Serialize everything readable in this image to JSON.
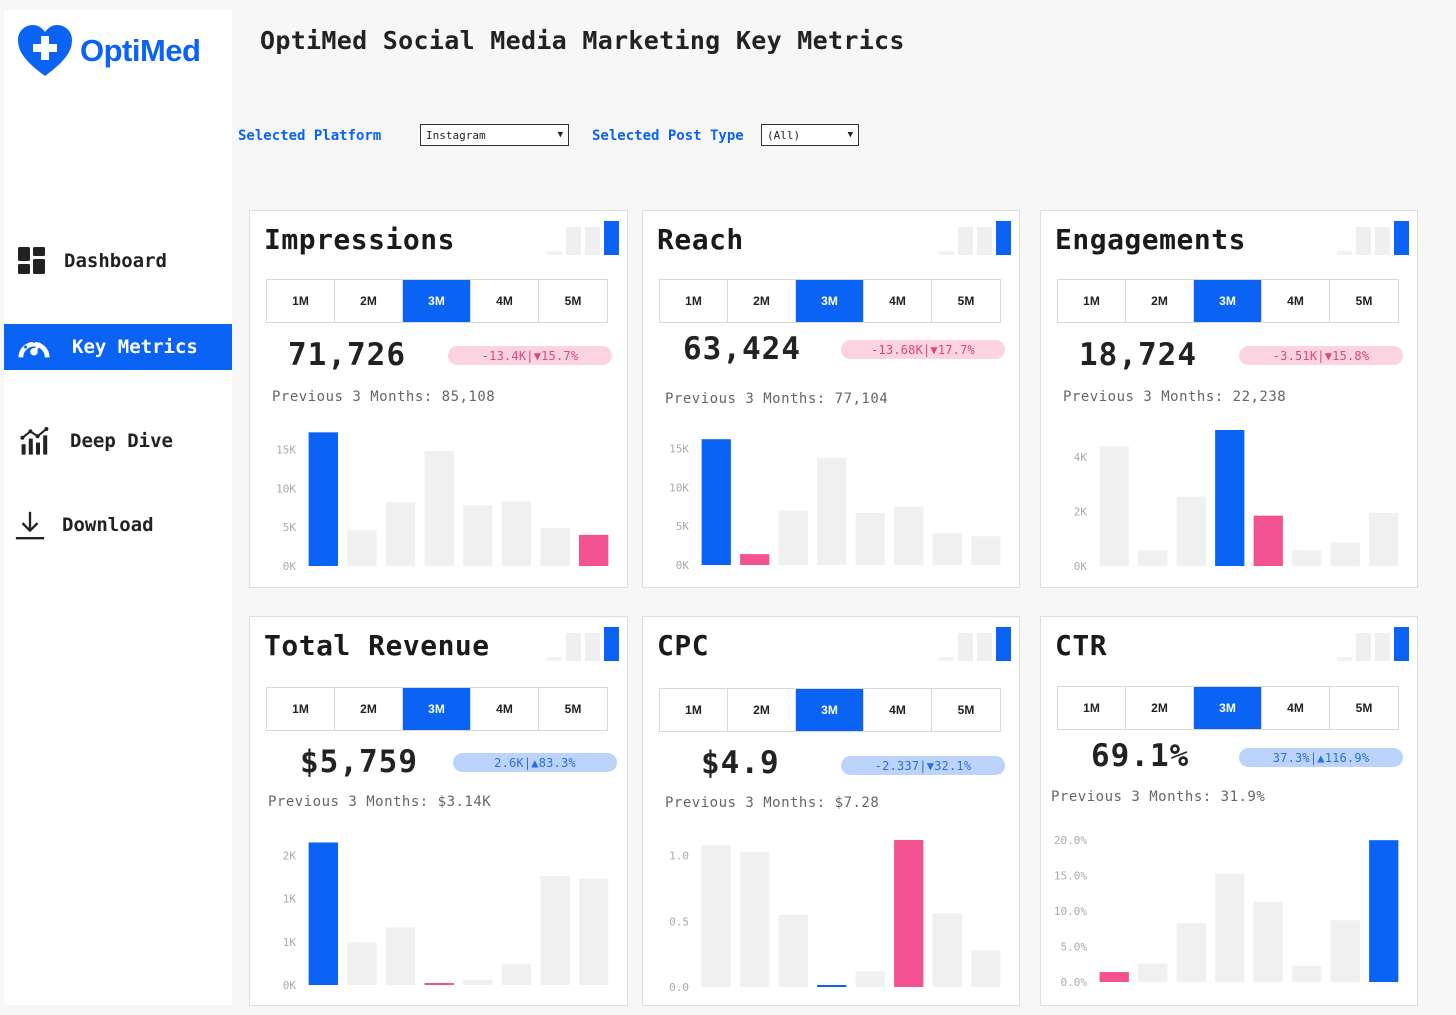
{
  "brand": {
    "name": "OptiMed",
    "accent": "#0a63f5",
    "negative": "#f25291",
    "neutral_bar": "#f0f0f0"
  },
  "page_title": "OptiMed Social Media Marketing Key Metrics",
  "nav": [
    {
      "label": "Dashboard",
      "icon": "dashboard-grid-icon",
      "active": false
    },
    {
      "label": "Key Metrics",
      "icon": "speedometer-icon",
      "active": true
    },
    {
      "label": "Deep Dive",
      "icon": "bar-chart-trend-icon",
      "active": false
    },
    {
      "label": "Download",
      "icon": "download-icon",
      "active": false
    }
  ],
  "filters": {
    "platform_label": "Selected Platform",
    "platform_value": "Instagram",
    "post_type_label": "Selected Post Type",
    "post_type_value": "(All)"
  },
  "periods": [
    "1M",
    "2M",
    "3M",
    "4M",
    "5M"
  ],
  "selected_period": "3M",
  "cards": [
    {
      "title": "Impressions",
      "value": "71,726",
      "delta": "-13.4K|▼15.7%",
      "trend": "neg",
      "previous": "Previous 3 Months: 85,108",
      "chart": {
        "ymax": 17500,
        "ticks": [
          {
            "v": 15000,
            "label": "15K"
          },
          {
            "v": 10000,
            "label": "10K"
          },
          {
            "v": 5000,
            "label": "5K"
          },
          {
            "v": 0,
            "label": "0K"
          }
        ],
        "values": [
          17200,
          4600,
          8200,
          14800,
          7800,
          8300,
          4900,
          4000
        ],
        "highlight": 0,
        "negative": 7
      }
    },
    {
      "title": "Reach",
      "value": "63,424",
      "delta": "-13.68K|▼17.7%",
      "trend": "neg",
      "previous": "Previous 3 Months: 77,104",
      "chart": {
        "ymax": 17000,
        "ticks": [
          {
            "v": 15000,
            "label": "15K"
          },
          {
            "v": 10000,
            "label": "10K"
          },
          {
            "v": 5000,
            "label": "5K"
          },
          {
            "v": 0,
            "label": "0K"
          }
        ],
        "values": [
          16200,
          1400,
          7000,
          13800,
          6700,
          7500,
          4100,
          3700
        ],
        "highlight": 0,
        "negative": 1
      }
    },
    {
      "title": "Engagements",
      "value": "18,724",
      "delta": "-3.51K|▼15.8%",
      "trend": "neg",
      "previous": "Previous 3 Months: 22,238",
      "chart": {
        "ymax": 5000,
        "ticks": [
          {
            "v": 4000,
            "label": "4K"
          },
          {
            "v": 2000,
            "label": "2K"
          },
          {
            "v": 0,
            "label": "0K"
          }
        ],
        "values": [
          4400,
          580,
          2550,
          5000,
          1850,
          580,
          860,
          1950
        ],
        "highlight": 3,
        "negative": 4
      }
    },
    {
      "title": "Total Revenue",
      "value": "$5,759",
      "delta": "2.6K|▲83.3%",
      "trend": "pos",
      "previous": "Previous 3 Months: $3.14K",
      "chart": {
        "ymax": 2300,
        "ticks": [
          {
            "v": 2000,
            "label": "2K"
          },
          {
            "v": 1333,
            "label": "1K"
          },
          {
            "v": 667,
            "label": "1K"
          },
          {
            "v": 0,
            "label": "0K"
          }
        ],
        "values": [
          2200,
          660,
          890,
          30,
          80,
          320,
          1680,
          1640
        ],
        "highlight": 0,
        "negative": 3
      }
    },
    {
      "title": "CPC",
      "value": "$4.9",
      "delta": "-2.337|▼32.1%",
      "trend": "pos",
      "previous": "Previous 3 Months: $7.28",
      "chart": {
        "ymax": 1.15,
        "ticks": [
          {
            "v": 1.0,
            "label": "1.0"
          },
          {
            "v": 0.5,
            "label": "0.5"
          },
          {
            "v": 0,
            "label": "0.0"
          }
        ],
        "values": [
          1.08,
          1.03,
          0.55,
          0.01,
          0.12,
          1.12,
          0.56,
          0.28
        ],
        "highlight": 3,
        "negative": 5
      }
    },
    {
      "title": "CTR",
      "value": "69.1%",
      "delta": "37.3%|▲116.9%",
      "trend": "pos",
      "previous": "Previous 3 Months: 31.9%",
      "chart": {
        "ymax": 0.22,
        "ticks": [
          {
            "v": 0.2,
            "label": "20.0%"
          },
          {
            "v": 0.15,
            "label": "15.0%"
          },
          {
            "v": 0.1,
            "label": "10.0%"
          },
          {
            "v": 0.05,
            "label": "5.0%"
          },
          {
            "v": 0,
            "label": "0.0%"
          }
        ],
        "values": [
          0.014,
          0.026,
          0.083,
          0.153,
          0.113,
          0.023,
          0.087,
          0.2
        ],
        "highlight": 7,
        "negative": 0
      }
    }
  ]
}
